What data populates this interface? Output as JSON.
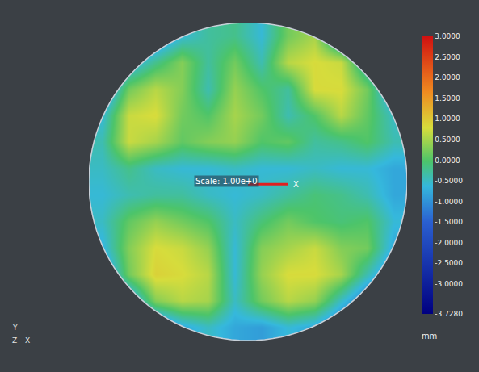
{
  "chart_data": {
    "type": "heatmap",
    "z": [
      [
        -1.5,
        -1.5,
        -1.2,
        -0.6,
        -0.3,
        -0.2,
        -0.6,
        0.2,
        0.5,
        -1.0,
        -1.5,
        -1.5
      ],
      [
        -1.5,
        -0.8,
        -0.2,
        0.3,
        -0.3,
        0.2,
        -0.4,
        0.6,
        0.8,
        0.7,
        -0.6,
        -1.5
      ],
      [
        -1.2,
        0.2,
        0.6,
        0.3,
        -0.4,
        0.4,
        0.0,
        -0.3,
        0.8,
        0.8,
        0.2,
        -1.0
      ],
      [
        -0.6,
        0.7,
        0.8,
        0.2,
        0.0,
        0.5,
        0.2,
        -0.4,
        0.0,
        0.6,
        0.1,
        -0.5
      ],
      [
        -0.4,
        0.7,
        0.5,
        0.1,
        0.3,
        0.4,
        0.0,
        0.1,
        -0.3,
        -0.2,
        0.0,
        -0.4
      ],
      [
        -0.5,
        -0.2,
        -0.5,
        -0.6,
        -0.6,
        -0.5,
        -0.6,
        -0.6,
        -0.5,
        -0.6,
        -0.6,
        -0.8
      ],
      [
        -0.6,
        -0.4,
        -0.3,
        -0.3,
        -0.5,
        -0.6,
        -0.5,
        -0.3,
        -0.1,
        -0.2,
        -0.4,
        -0.8
      ],
      [
        -0.5,
        0.1,
        0.4,
        0.2,
        0.0,
        -0.5,
        -0.1,
        0.2,
        0.0,
        -0.1,
        0.0,
        -0.6
      ],
      [
        -0.7,
        0.3,
        0.8,
        0.7,
        0.4,
        -0.6,
        0.3,
        0.5,
        0.7,
        0.3,
        0.2,
        -0.8
      ],
      [
        -1.2,
        0.2,
        0.9,
        0.8,
        0.6,
        -0.6,
        0.4,
        0.8,
        0.8,
        0.5,
        -0.4,
        -1.2
      ],
      [
        -1.5,
        -1.0,
        0.3,
        0.6,
        0.5,
        -0.5,
        0.2,
        0.6,
        0.4,
        -0.5,
        -1.3,
        -1.5
      ],
      [
        -1.5,
        -1.5,
        -1.4,
        -0.8,
        -0.5,
        -0.8,
        -0.9,
        -0.6,
        -0.8,
        -1.4,
        -1.5,
        -1.5
      ]
    ],
    "colorbar": {
      "range": [
        -3.728,
        3
      ],
      "ticks": [
        {
          "value": 3,
          "label": "3.0000"
        },
        {
          "value": 2.5,
          "label": "2.5000"
        },
        {
          "value": 2,
          "label": "2.0000"
        },
        {
          "value": 1.5,
          "label": "1.5000"
        },
        {
          "value": 1,
          "label": "1.0000"
        },
        {
          "value": 0.5,
          "label": "0.5000"
        },
        {
          "value": 0,
          "label": "0.0000"
        },
        {
          "value": -0.5,
          "label": "-0.5000"
        },
        {
          "value": -1,
          "label": "-1.0000"
        },
        {
          "value": -1.5,
          "label": "-1.5000"
        },
        {
          "value": -2,
          "label": "-2.0000"
        },
        {
          "value": -2.5,
          "label": "-2.5000"
        },
        {
          "value": -3,
          "label": "-3.0000"
        },
        {
          "value": -3.728,
          "label": "-3.7280"
        }
      ],
      "title": "mm"
    },
    "annotations": [
      {
        "text": "Scale: 1.00e+0"
      },
      {
        "text": "X"
      }
    ],
    "axis_triad": [
      "Y",
      "Z",
      "X"
    ],
    "grid": false,
    "tick_labels": false
  }
}
